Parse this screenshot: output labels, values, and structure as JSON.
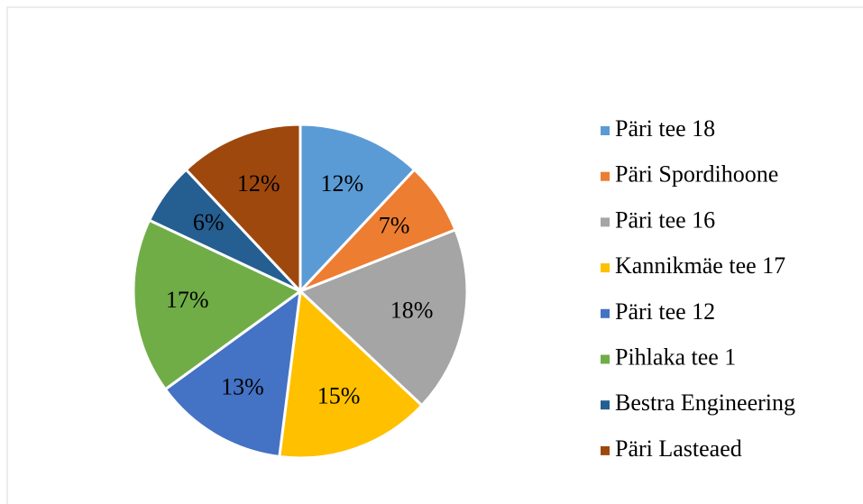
{
  "chart_data": {
    "type": "pie",
    "categories": [
      "Päri tee 18",
      "Päri Spordihoone",
      "Päri tee 16",
      "Kannikmäe tee 17",
      "Päri tee 12",
      "Pihlaka tee 1",
      "Bestra Engineering",
      "Päri Lasteaed"
    ],
    "values": [
      12,
      7,
      18,
      15,
      13,
      17,
      6,
      12
    ],
    "value_labels": [
      "12%",
      "7%",
      "18%",
      "15%",
      "13%",
      "17%",
      "6%",
      "12%"
    ],
    "colors": [
      "#5b9bd5",
      "#ed7d31",
      "#a5a5a5",
      "#ffc000",
      "#4472c4",
      "#70ad47",
      "#255e91",
      "#9e480e"
    ],
    "legend": "right"
  }
}
